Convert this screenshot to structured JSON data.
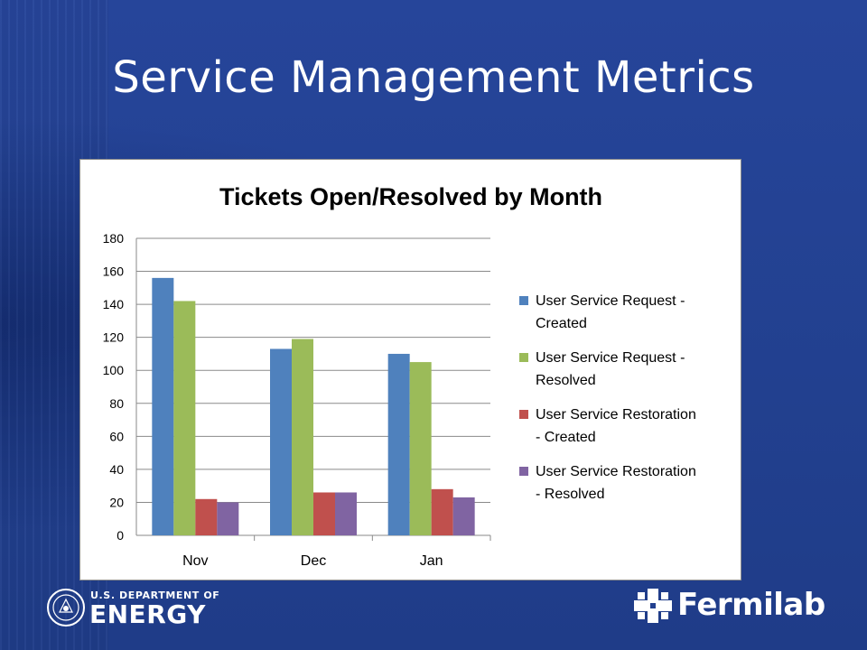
{
  "slide": {
    "title": "Service Management Metrics"
  },
  "footer": {
    "doe_line1": "U.S. DEPARTMENT OF",
    "doe_line2": "ENERGY",
    "fermilab": "Fermilab"
  },
  "chart_data": {
    "type": "bar",
    "title": "Tickets Open/Resolved by Month",
    "categories": [
      "Nov",
      "Dec",
      "Jan"
    ],
    "ylim": [
      0,
      180
    ],
    "yticks": [
      "0",
      "20",
      "40",
      "60",
      "80",
      "100",
      "120",
      "140",
      "160",
      "180"
    ],
    "grid": true,
    "legend_position": "right",
    "series": [
      {
        "name_lines": [
          "User Service Request -",
          "Created"
        ],
        "name": "User Service Request - Created",
        "color": "#4f81bd",
        "values": [
          156,
          113,
          110
        ]
      },
      {
        "name_lines": [
          "User Service Request -",
          "Resolved"
        ],
        "name": "User Service Request - Resolved",
        "color": "#9bbb59",
        "values": [
          142,
          119,
          105
        ]
      },
      {
        "name_lines": [
          "User Service Restoration",
          "- Created"
        ],
        "name": "User Service Restoration - Created",
        "color": "#c0504d",
        "values": [
          22,
          26,
          28
        ]
      },
      {
        "name_lines": [
          "User Service Restoration",
          "- Resolved"
        ],
        "name": "User Service Restoration - Resolved",
        "color": "#8064a2",
        "values": [
          20,
          26,
          23
        ]
      }
    ]
  }
}
